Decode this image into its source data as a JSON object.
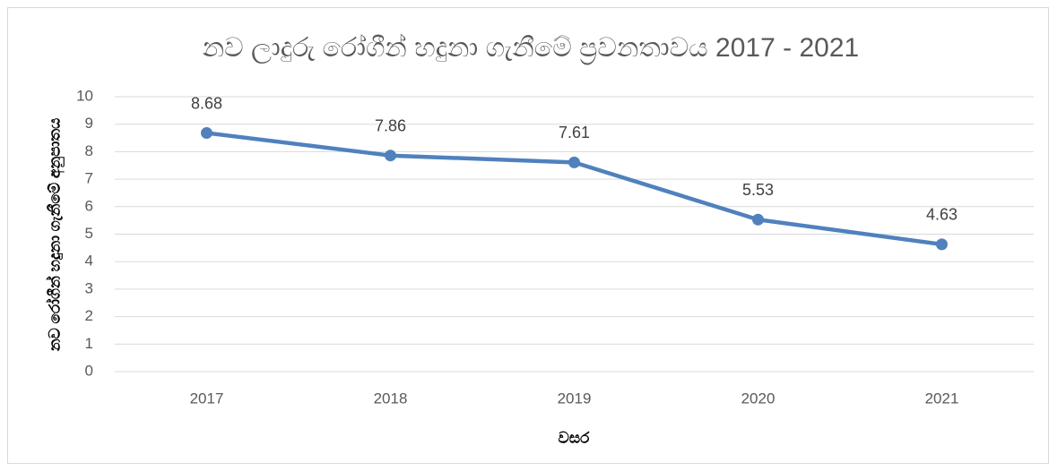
{
  "chart_data": {
    "type": "line",
    "title": "නව ලාදුරු රෝගීන් හදුනා ගැනීමේ ප්‍රවනතාවය 2017 - 2021",
    "x_label": "වසර",
    "y_label": "නව රෝගීන් හදුනා ගැනීමේ අනුපාතය",
    "categories": [
      "2017",
      "2018",
      "2019",
      "2020",
      "2021"
    ],
    "values": [
      8.68,
      7.86,
      7.61,
      5.53,
      4.63
    ],
    "color": "#4f81bd",
    "ylim": [
      0,
      10
    ],
    "yticks": [
      0,
      1,
      2,
      3,
      4,
      5,
      6,
      7,
      8,
      9,
      10
    ],
    "grid": true
  }
}
